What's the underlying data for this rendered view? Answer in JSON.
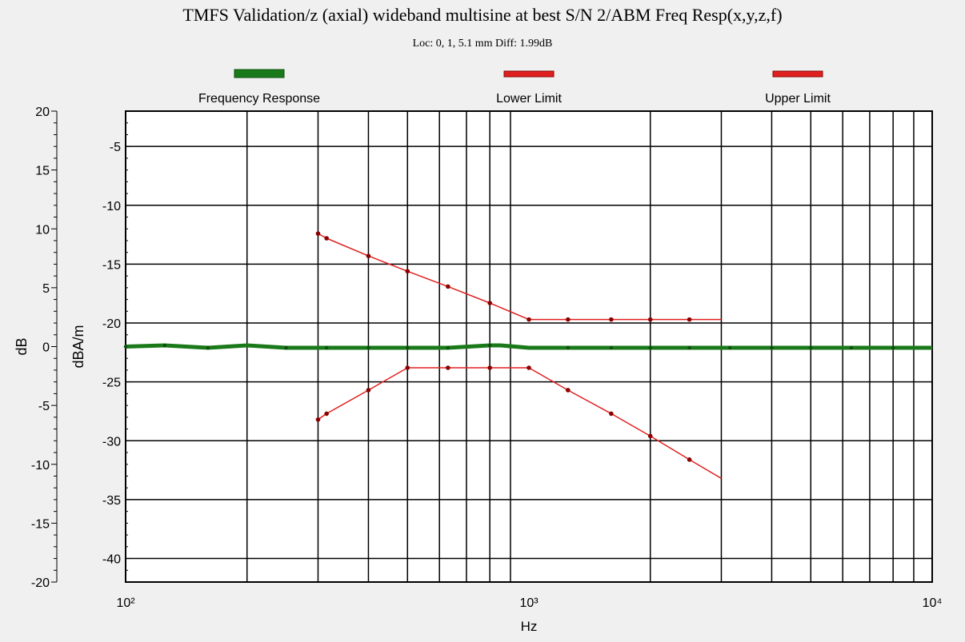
{
  "chart_data": {
    "type": "line",
    "title": "TMFS Validation/z (axial) wideband multisine at best S/N 2/ABM Freq Resp(x,y,z,f)",
    "subtitle": "Loc: 0, 1, 5.1 mm Diff: 1.99dB",
    "xlabel": "Hz",
    "x_scale": "log",
    "xlim": [
      100,
      10000
    ],
    "x_ticks": [
      "10²",
      "10³",
      "10⁴"
    ],
    "y_left": {
      "label": "dB",
      "lim": [
        -20,
        20
      ],
      "ticks": [
        "20",
        "15",
        "10",
        "5",
        "0",
        "-5",
        "-10",
        "-15",
        "-20"
      ]
    },
    "y_right": {
      "label": "dBA/m",
      "lim": [
        -42,
        -2
      ],
      "ticks": [
        "-5",
        "-10",
        "-15",
        "-20",
        "-25",
        "-30",
        "-35",
        "-40"
      ]
    },
    "grid": true,
    "legend_position": "top",
    "series": [
      {
        "name": "Frequency Response",
        "color": "#1a7a1a",
        "axis": "left",
        "x": [
          100,
          125,
          160,
          200,
          250,
          315,
          400,
          500,
          630,
          800,
          850,
          1000,
          1250,
          1600,
          2000,
          2500,
          3150,
          4000,
          5000,
          6300,
          8000,
          10000
        ],
        "y": [
          0.0,
          0.1,
          -0.1,
          0.1,
          -0.1,
          -0.1,
          -0.1,
          -0.1,
          -0.1,
          0.1,
          0.1,
          -0.1,
          -0.1,
          -0.1,
          -0.1,
          -0.1,
          -0.1,
          -0.1,
          -0.1,
          -0.1,
          -0.1,
          -0.1
        ],
        "markers": [
          100,
          125,
          160,
          250,
          315,
          400,
          500,
          630,
          800,
          1250,
          1600,
          2000,
          2500,
          3150,
          4000,
          5000,
          6300,
          8000
        ]
      },
      {
        "name": "Lower Limit",
        "color": "#e02020",
        "axis": "right",
        "x": [
          300,
          315,
          400,
          500,
          630,
          800,
          1000,
          1250,
          1600,
          2000,
          2500,
          3000
        ],
        "y": [
          -28.2,
          -27.7,
          -25.7,
          -23.8,
          -23.8,
          -23.8,
          -23.8,
          -25.7,
          -27.7,
          -29.6,
          -31.6,
          -33.2
        ],
        "markers": [
          300,
          315,
          400,
          500,
          630,
          800,
          1000,
          1250,
          1600,
          2000,
          2500
        ]
      },
      {
        "name": "Upper Limit",
        "color": "#e02020",
        "axis": "right",
        "x": [
          300,
          315,
          400,
          500,
          630,
          800,
          1000,
          1250,
          1600,
          2000,
          2500,
          3000
        ],
        "y": [
          -12.4,
          -12.8,
          -14.3,
          -15.6,
          -16.9,
          -18.3,
          -19.7,
          -19.7,
          -19.7,
          -19.7,
          -19.7,
          -19.7
        ],
        "markers": [
          300,
          315,
          400,
          500,
          630,
          800,
          1000,
          1250,
          1600,
          2000,
          2500
        ]
      }
    ]
  }
}
